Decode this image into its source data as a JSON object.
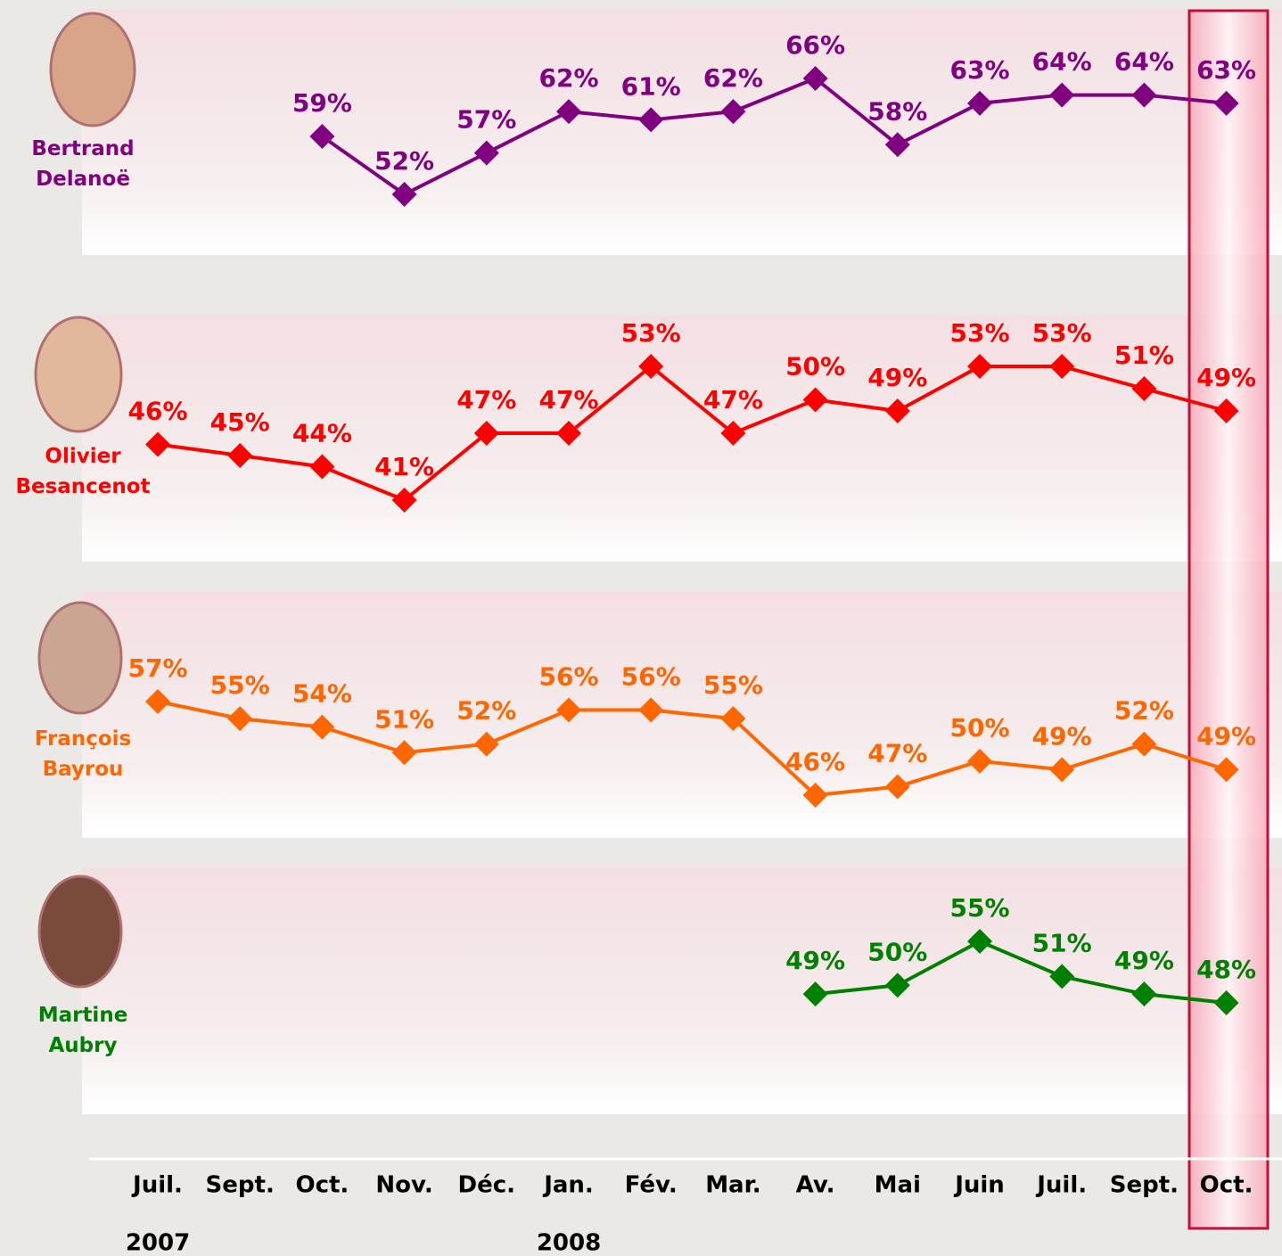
{
  "chart_data": {
    "type": "line",
    "categories": [
      "Juil.",
      "Sept.",
      "Oct.",
      "Nov.",
      "Déc.",
      "Jan.",
      "Fév.",
      "Mar.",
      "Av.",
      "Mai",
      "Juin",
      "Juil.",
      "Sept.",
      "Oct."
    ],
    "years": [
      "2007",
      null,
      null,
      null,
      null,
      "2008",
      null,
      null,
      null,
      null,
      null,
      null,
      null,
      null
    ],
    "series": [
      {
        "name": "Bertrand Delanoë",
        "color": "#800080",
        "values": [
          null,
          null,
          59,
          52,
          57,
          62,
          61,
          62,
          66,
          58,
          63,
          64,
          64,
          63
        ],
        "value_labels": [
          null,
          null,
          "59%",
          "52%",
          "57%",
          "62%",
          "61%",
          "62%",
          "66%",
          "58%",
          "63%",
          "64%",
          "64%",
          "63%"
        ]
      },
      {
        "name": "Olivier Besancenot",
        "color": "#ff0000",
        "values": [
          46,
          45,
          44,
          41,
          47,
          47,
          53,
          47,
          50,
          49,
          53,
          53,
          51,
          49
        ],
        "value_labels": [
          "46%",
          "45%",
          "44%",
          "41%",
          "47%",
          "47%",
          "53%",
          "47%",
          "50%",
          "49%",
          "53%",
          "53%",
          "51%",
          "49%"
        ]
      },
      {
        "name": "François Bayrou",
        "color": "#ff6600",
        "values": [
          57,
          55,
          54,
          51,
          52,
          56,
          56,
          55,
          46,
          47,
          50,
          49,
          52,
          49
        ],
        "value_labels": [
          "57%",
          "55%",
          "54%",
          "51%",
          "52%",
          "56%",
          "56%",
          "55%",
          "46%",
          "47%",
          "50%",
          "49%",
          "52%",
          "49%"
        ]
      },
      {
        "name": "Martine Aubry",
        "color": "#008000",
        "values": [
          null,
          null,
          null,
          null,
          null,
          null,
          null,
          null,
          49,
          50,
          55,
          51,
          49,
          48
        ],
        "value_labels": [
          null,
          null,
          null,
          null,
          null,
          null,
          null,
          null,
          "49%",
          "50%",
          "55%",
          "51%",
          "49%",
          "48%"
        ]
      }
    ]
  }
}
